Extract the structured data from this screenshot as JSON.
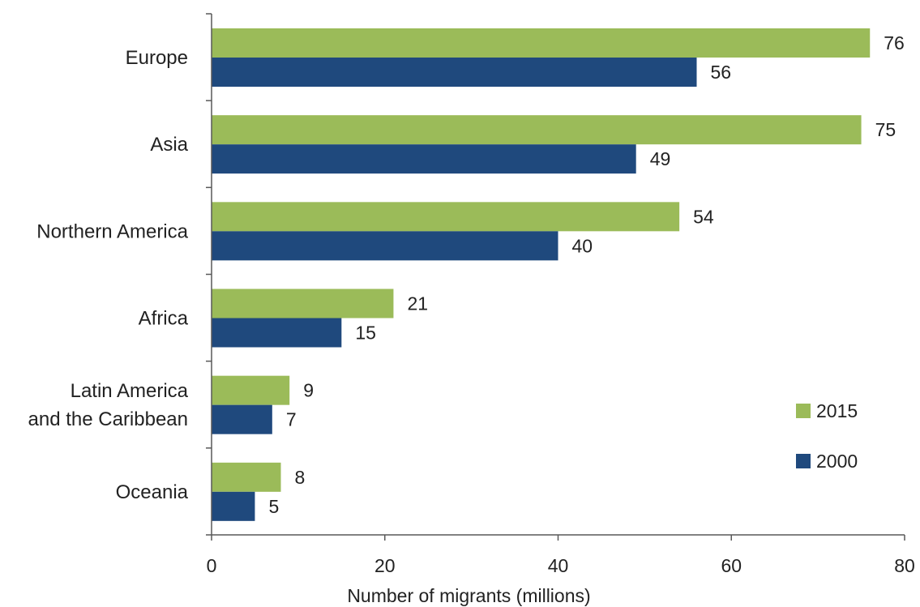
{
  "chart_data": {
    "type": "bar",
    "orientation": "horizontal",
    "categories": [
      [
        "Europe"
      ],
      [
        "Asia"
      ],
      [
        "Northern America"
      ],
      [
        "Africa"
      ],
      [
        "Latin America",
        "and the Caribbean"
      ],
      [
        "Oceania"
      ]
    ],
    "series": [
      {
        "name": "2015",
        "color": "#9BBB59",
        "values": [
          76,
          75,
          54,
          21,
          9,
          8
        ]
      },
      {
        "name": "2000",
        "color": "#1F497D",
        "values": [
          56,
          49,
          40,
          15,
          7,
          5
        ]
      }
    ],
    "xlabel": "Number of migrants (millions)",
    "ylabel": "",
    "xlim": [
      0,
      80
    ],
    "xticks": [
      0,
      20,
      40,
      60,
      80
    ],
    "grid": false,
    "legend": "right"
  }
}
